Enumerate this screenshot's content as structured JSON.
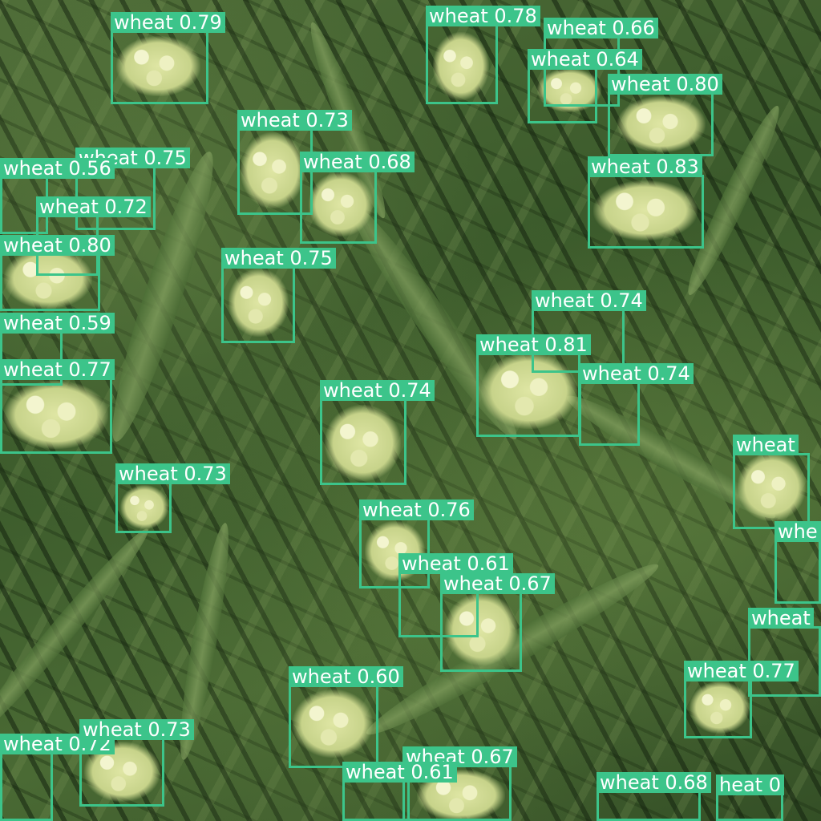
{
  "colors": {
    "box": "#3cc48a",
    "label_text": "#ffffff"
  },
  "detections": [
    {
      "label": "wheat 0.79"
    },
    {
      "label": "wheat 0.78"
    },
    {
      "label": "wheat 0.66"
    },
    {
      "label": "wheat 0.64"
    },
    {
      "label": "wheat 0.80"
    },
    {
      "label": "wheat 0.73"
    },
    {
      "label": "wheat 0.75"
    },
    {
      "label": "wheat 0.56"
    },
    {
      "label": "wheat 0.68"
    },
    {
      "label": "wheat 0.83"
    },
    {
      "label": "wheat 0.72"
    },
    {
      "label": "wheat 0.80"
    },
    {
      "label": "wheat 0.75"
    },
    {
      "label": "wheat 0.59"
    },
    {
      "label": "wheat 0.74"
    },
    {
      "label": "wheat 0.81"
    },
    {
      "label": "wheat 0.77"
    },
    {
      "label": "wheat 0.74"
    },
    {
      "label": "wheat 0.74"
    },
    {
      "label": "wheat"
    },
    {
      "label": "wheat 0.73"
    },
    {
      "label": "wheat 0.76"
    },
    {
      "label": "whe"
    },
    {
      "label": "wheat 0.61"
    },
    {
      "label": "wheat 0.67"
    },
    {
      "label": "wheat"
    },
    {
      "label": "wheat 0.60"
    },
    {
      "label": "wheat 0.77"
    },
    {
      "label": "wheat 0.72"
    },
    {
      "label": "wheat 0.73"
    },
    {
      "label": "wheat 0.67"
    },
    {
      "label": "wheat 0.61"
    },
    {
      "label": "wheat 0.68"
    },
    {
      "label": "heat 0"
    }
  ]
}
